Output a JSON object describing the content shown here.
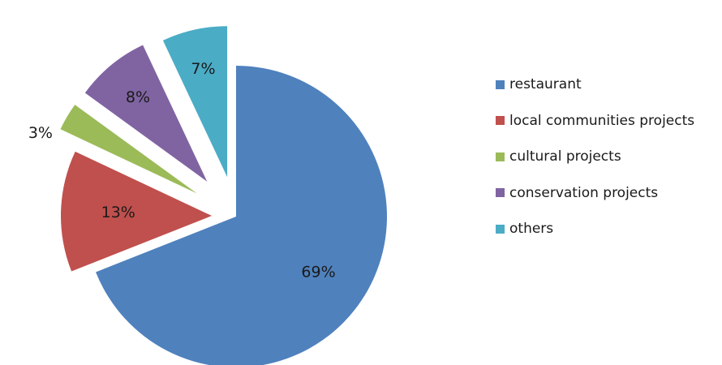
{
  "chart_data": {
    "type": "pie",
    "title": "",
    "legend_position": "right",
    "slices": [
      {
        "label": "restaurant",
        "value": 69,
        "value_label": "69%",
        "color": "#4f81bd"
      },
      {
        "label": "local communities projects",
        "value": 13,
        "value_label": "13%",
        "color": "#c0504d"
      },
      {
        "label": "cultural projects",
        "value": 3,
        "value_label": "3%",
        "color": "#9bbb59"
      },
      {
        "label": "conservation projects",
        "value": 8,
        "value_label": "8%",
        "color": "#8064a2"
      },
      {
        "label": "others",
        "value": 7,
        "value_label": "7%",
        "color": "#4bacc6"
      }
    ]
  }
}
